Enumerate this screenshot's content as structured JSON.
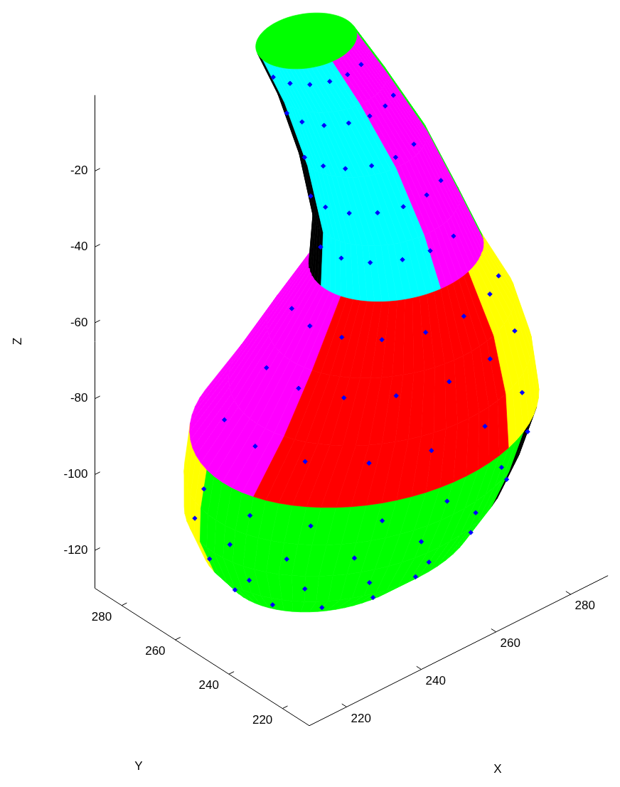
{
  "chart_data": {
    "type": "surface",
    "xlabel": "X",
    "ylabel": "Y",
    "zlabel": "Z",
    "xlim": [
      210,
      290
    ],
    "ylim": [
      210,
      290
    ],
    "zlim": [
      -130,
      0
    ],
    "xticks": [
      220,
      240,
      260,
      280
    ],
    "yticks": [
      220,
      240,
      260,
      280
    ],
    "zticks": [
      -120,
      -100,
      -80,
      -60,
      -40,
      -20
    ],
    "profile": {
      "z": [
        -4,
        -15,
        -30,
        -45,
        -55,
        -65,
        -75,
        -85,
        -95,
        -105,
        -115,
        -123,
        -128
      ],
      "center_x": [
        258,
        262,
        266,
        268,
        267,
        262,
        257,
        252,
        250,
        249,
        248,
        246,
        245
      ],
      "center_y": [
        278,
        274,
        268,
        262,
        257,
        252,
        249,
        248,
        249,
        251,
        252,
        254,
        255
      ],
      "radius": [
        11,
        12,
        14,
        16,
        19,
        27,
        33,
        38,
        37,
        35,
        30,
        22,
        12
      ]
    },
    "segments": [
      {
        "z": [
          -4,
          -4
        ],
        "theta": [
          0,
          360
        ],
        "color": "#00ff00"
      },
      {
        "z": [
          -55,
          -4
        ],
        "theta": [
          120,
          175
        ],
        "color": "#000000"
      },
      {
        "z": [
          -55,
          -4
        ],
        "theta": [
          175,
          265
        ],
        "color": "#00ffff"
      },
      {
        "z": [
          -55,
          -4
        ],
        "theta": [
          265,
          330
        ],
        "color": "#ff00ff"
      },
      {
        "z": [
          -55,
          -4
        ],
        "theta": [
          330,
          480
        ],
        "color": "#00ff00"
      },
      {
        "z": [
          -85,
          -55
        ],
        "theta": [
          60,
          195
        ],
        "color": "#ff00ff"
      },
      {
        "z": [
          -85,
          -55
        ],
        "theta": [
          195,
          290
        ],
        "color": "#ff0000"
      },
      {
        "z": [
          -85,
          -55
        ],
        "theta": [
          290,
          420
        ],
        "color": "#ffff00"
      },
      {
        "z": [
          -128,
          -85
        ],
        "theta": [
          170,
          300
        ],
        "color": "#00ff00"
      },
      {
        "z": [
          -128,
          -85
        ],
        "theta": [
          300,
          340
        ],
        "color": "#000000"
      },
      {
        "z": [
          -128,
          -85
        ],
        "theta": [
          340,
          530
        ],
        "color": "#ffff00"
      }
    ],
    "points": [
      {
        "z": -8,
        "theta": [
          180,
          205,
          228,
          250,
          272,
          295
        ]
      },
      {
        "z": -18,
        "theta": [
          170,
          195,
          220,
          245,
          268,
          290,
          310
        ]
      },
      {
        "z": -28,
        "theta": [
          175,
          200,
          222,
          246,
          270,
          295
        ]
      },
      {
        "z": -38,
        "theta": [
          165,
          188,
          212,
          236,
          258,
          282,
          305
        ]
      },
      {
        "z": -48,
        "theta": [
          172,
          196,
          220,
          244,
          266,
          290
        ]
      },
      {
        "z": -60,
        "theta": [
          160,
          182,
          205,
          228,
          252,
          276,
          300,
          318
        ]
      },
      {
        "z": -68,
        "theta": [
          168,
          192,
          215,
          238,
          262,
          285,
          308
        ]
      },
      {
        "z": -78,
        "theta": [
          162,
          185,
          208,
          232,
          255,
          278,
          302
        ]
      },
      {
        "z": -90,
        "theta": [
          170,
          195,
          218,
          242,
          265,
          290,
          312
        ]
      },
      {
        "z": -100,
        "theta": [
          165,
          188,
          212,
          236,
          260,
          284,
          306
        ]
      },
      {
        "z": -110,
        "theta": [
          172,
          196,
          220,
          245,
          270,
          294
        ]
      },
      {
        "z": -120,
        "theta": [
          178,
          204,
          230,
          256,
          282
        ]
      }
    ],
    "color": "#0000ff",
    "marker": "diamond"
  }
}
